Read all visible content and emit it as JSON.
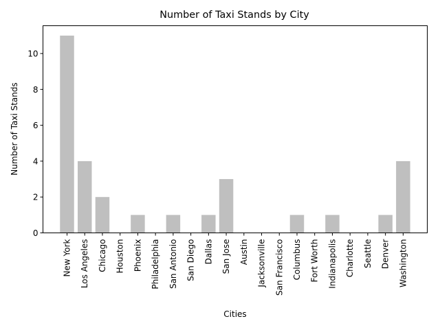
{
  "chart_data": {
    "type": "bar",
    "title": "Number of Taxi Stands by City",
    "xlabel": "Cities",
    "ylabel": "Number of Taxi Stands",
    "categories": [
      "New York",
      "Los Angeles",
      "Chicago",
      "Houston",
      "Phoenix",
      "Philadelphia",
      "San Antonio",
      "San Diego",
      "Dallas",
      "San Jose",
      "Austin",
      "Jacksonville",
      "San Francisco",
      "Columbus",
      "Fort Worth",
      "Indianapolis",
      "Charlotte",
      "Seattle",
      "Denver",
      "Washington"
    ],
    "values": [
      11,
      4,
      2,
      0,
      1,
      0,
      1,
      0,
      1,
      3,
      0,
      0,
      0,
      1,
      0,
      1,
      0,
      0,
      1,
      4
    ],
    "yticks": [
      0,
      2,
      4,
      6,
      8,
      10
    ],
    "ylim": [
      0,
      11.55
    ],
    "grid": false,
    "bar_color": "#bfbfbf"
  }
}
